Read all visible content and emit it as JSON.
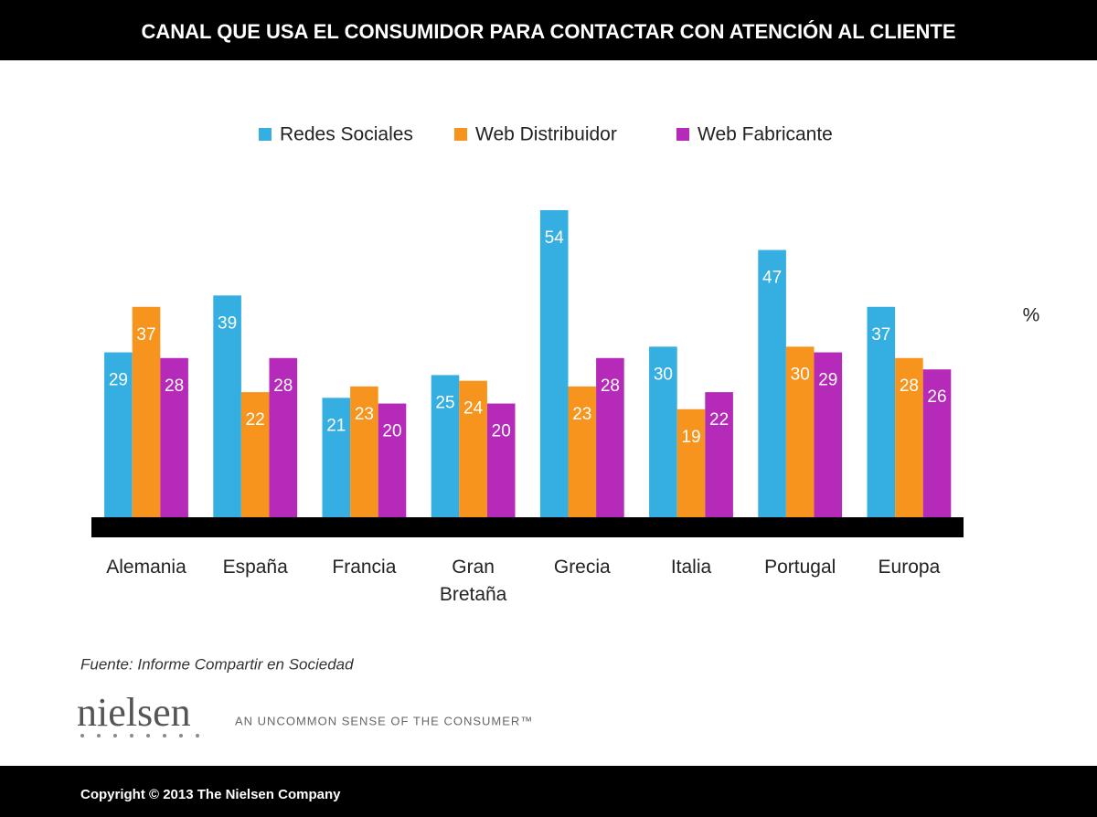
{
  "chart_data": {
    "type": "bar",
    "title": "CANAL QUE USA EL CONSUMIDOR PARA CONTACTAR CON ATENCIÓN AL CLIENTE",
    "categories": [
      "Alemania",
      "España",
      "Francia",
      "Gran Bretaña",
      "Grecia",
      "Italia",
      "Portugal",
      "Europa"
    ],
    "series": [
      {
        "name": "Redes Sociales",
        "color": "#35aee2",
        "values": [
          29,
          39,
          21,
          25,
          54,
          30,
          47,
          37
        ]
      },
      {
        "name": "Web Distribuidor",
        "color": "#f7941e",
        "values": [
          37,
          22,
          23,
          24,
          23,
          19,
          30,
          28
        ]
      },
      {
        "name": "Web Fabricante",
        "color": "#b52ab8",
        "values": [
          28,
          28,
          20,
          20,
          28,
          22,
          29,
          26
        ]
      }
    ],
    "unit_label": "%"
  },
  "source": "Fuente: Informe Compartir en Sociedad",
  "brand": "nielsen",
  "tagline": "AN UNCOMMON SENSE OF THE CONSUMER™",
  "copyright": "Copyright © 2013 The Nielsen Company"
}
